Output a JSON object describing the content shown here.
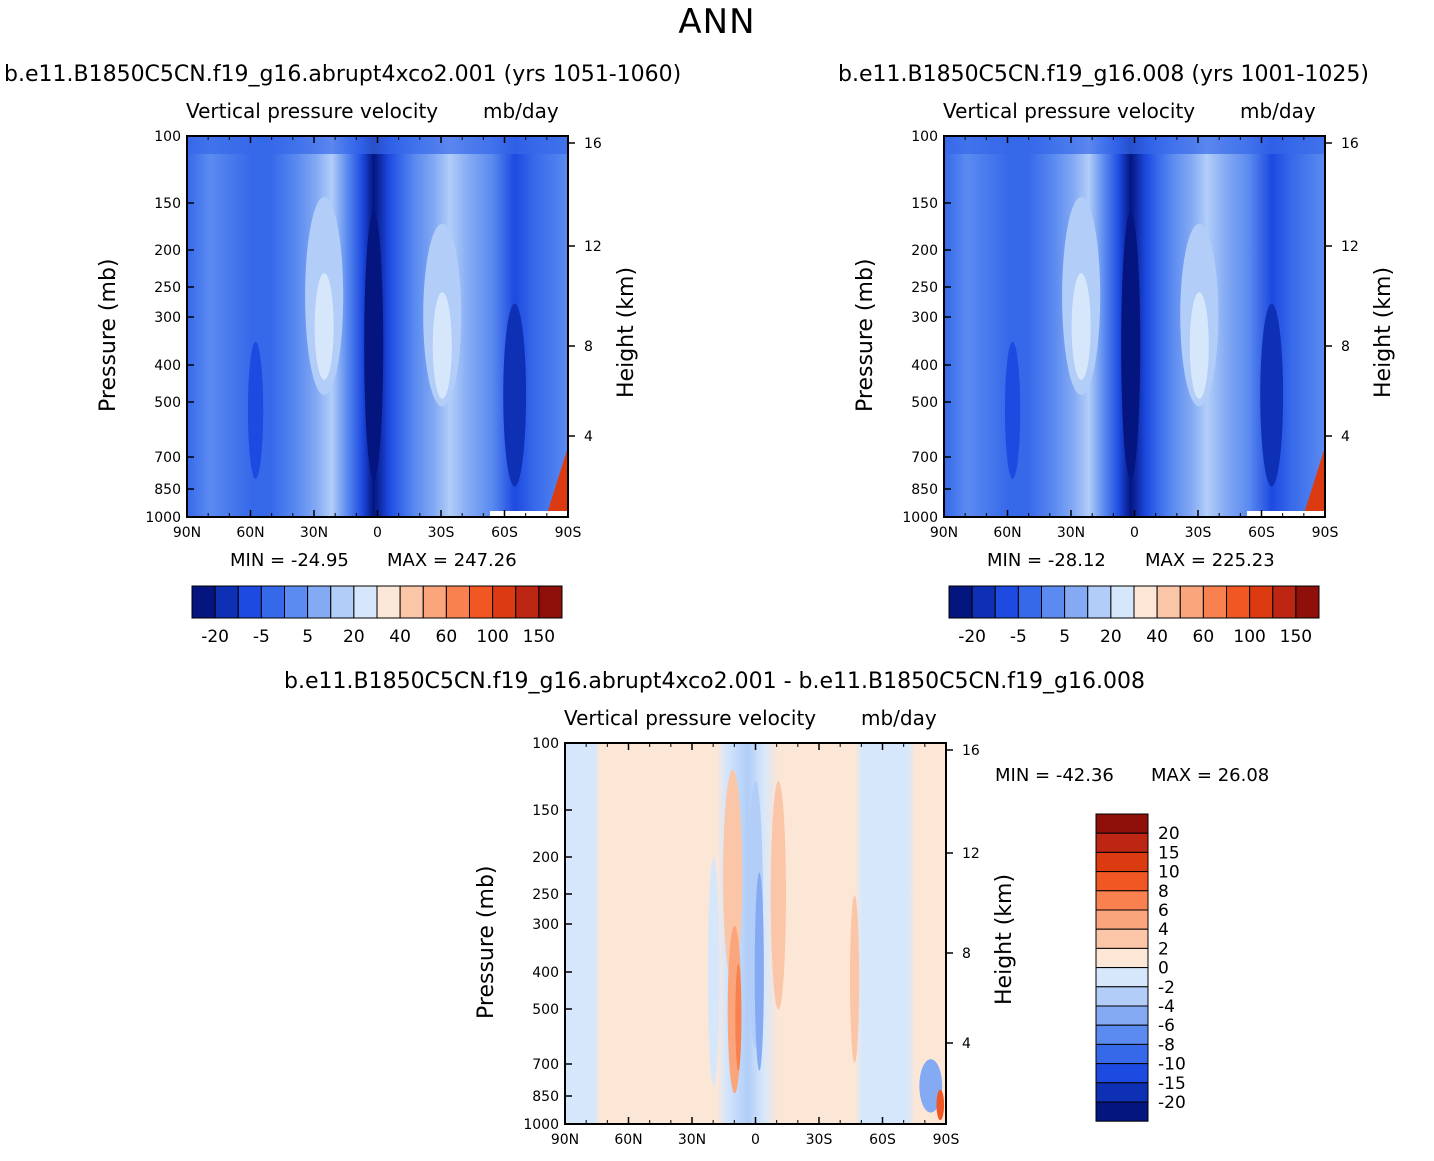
{
  "page_title": "ANN",
  "colors": {
    "pos": [
      "#fce6d6",
      "#fbc6a8",
      "#fba57c",
      "#f9814f",
      "#f15722",
      "#dc3a11",
      "#bc2612",
      "#8f0f0b"
    ],
    "neg": [
      "#d6e7fb",
      "#b1cdf8",
      "#84aaf3",
      "#5b8bf0",
      "#3668ea",
      "#1d4ae0",
      "#0e30b5",
      "#04157f"
    ],
    "main_levels": [
      "#04157f",
      "#0e30b5",
      "#1d4ae0",
      "#3668ea",
      "#5b8bf0",
      "#84aaf3",
      "#b1cdf8",
      "#d6e7fb",
      "#fce6d6",
      "#fbc6a8",
      "#fba57c",
      "#f9814f",
      "#f15722",
      "#dc3a11",
      "#bc2612",
      "#8f0f0b"
    ]
  },
  "chart_data": [
    {
      "type": "heatmap",
      "id": "left",
      "run_title": "b.e11.B1850C5CN.f19_g16.abrupt4xco2.001  (yrs 1051-1060)",
      "title": "Vertical pressure velocity",
      "units": "mb/day",
      "ylabel": "Pressure (mb)",
      "y2label": "Height (km)",
      "x_ticks": [
        "90N",
        "60N",
        "30N",
        "0",
        "30S",
        "60S",
        "90S"
      ],
      "y_ticks": [
        "100",
        "150",
        "200",
        "250",
        "300",
        "400",
        "500",
        "700",
        "850",
        "1000"
      ],
      "y2_ticks": [
        "16",
        "12",
        "8",
        "4"
      ],
      "min_label": "MIN = -24.95",
      "max_label": "MAX = 247.26",
      "min": -24.95,
      "max": 247.26,
      "colorbar_labels": [
        "-20",
        "-5",
        "5",
        "20",
        "40",
        "60",
        "100",
        "150"
      ]
    },
    {
      "type": "heatmap",
      "id": "right",
      "run_title": "b.e11.B1850C5CN.f19_g16.008  (yrs 1001-1025)",
      "title": "Vertical pressure velocity",
      "units": "mb/day",
      "ylabel": "Pressure (mb)",
      "y2label": "Height (km)",
      "x_ticks": [
        "90N",
        "60N",
        "30N",
        "0",
        "30S",
        "60S",
        "90S"
      ],
      "y_ticks": [
        "100",
        "150",
        "200",
        "250",
        "300",
        "400",
        "500",
        "700",
        "850",
        "1000"
      ],
      "y2_ticks": [
        "16",
        "12",
        "8",
        "4"
      ],
      "min_label": "MIN = -28.12",
      "max_label": "MAX = 225.23",
      "min": -28.12,
      "max": 225.23,
      "colorbar_labels": [
        "-20",
        "-5",
        "5",
        "20",
        "40",
        "60",
        "100",
        "150"
      ]
    },
    {
      "type": "heatmap",
      "id": "diff",
      "run_title": "b.e11.B1850C5CN.f19_g16.abrupt4xco2.001  -  b.e11.B1850C5CN.f19_g16.008",
      "title": "Vertical pressure velocity",
      "units": "mb/day",
      "ylabel": "Pressure (mb)",
      "y2label": "Height (km)",
      "x_ticks": [
        "90N",
        "60N",
        "30N",
        "0",
        "30S",
        "60S",
        "90S"
      ],
      "y_ticks": [
        "100",
        "150",
        "200",
        "250",
        "300",
        "400",
        "500",
        "700",
        "850",
        "1000"
      ],
      "y2_ticks": [
        "16",
        "12",
        "8",
        "4"
      ],
      "min_label": "MIN = -42.36",
      "max_label": "MAX =   26.08",
      "min": -42.36,
      "max": 26.08,
      "colorbar_labels": [
        "20",
        "15",
        "10",
        "8",
        "6",
        "4",
        "2",
        "0",
        "-2",
        "-4",
        "-6",
        "-8",
        "-10",
        "-15",
        "-20"
      ]
    }
  ]
}
